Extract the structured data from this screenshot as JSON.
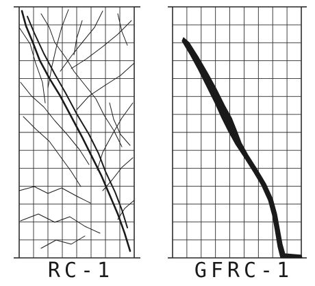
{
  "figure": {
    "left_specimen": {
      "label": "RC-1"
    },
    "right_specimen": {
      "label": "GFRC-1"
    },
    "colors": {
      "ink": "#1a1a1a",
      "grid": "#2b2b2b",
      "background": "#ffffff"
    }
  }
}
